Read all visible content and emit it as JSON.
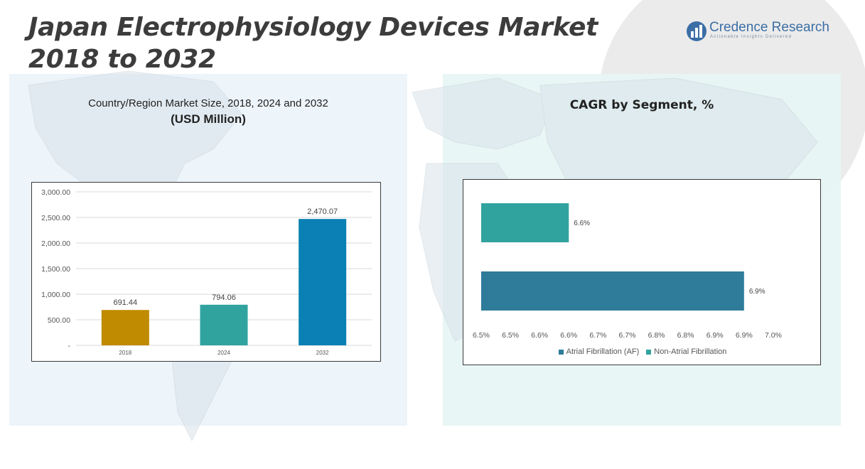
{
  "header": {
    "title_line1": "Japan Electrophysiology Devices Market",
    "title_line2": "2018 to 2032"
  },
  "logo": {
    "name": "Credence Research",
    "tagline": "Actionable Insights Delivered",
    "color": "#3b6ea5"
  },
  "left_panel": {
    "title_line1": "Country/Region Market Size, 2018, 2024 and 2032",
    "title_line2": "(USD Million)"
  },
  "right_panel": {
    "title": "CAGR by Segment, %"
  },
  "chart_data": [
    {
      "type": "bar",
      "categories": [
        "2018",
        "2024",
        "2032"
      ],
      "values": [
        691.44,
        794.06,
        2470.07
      ],
      "value_labels": [
        "691.44",
        "794.06",
        "2,470.07"
      ],
      "colors": [
        "#c08b00",
        "#31a39f",
        "#0a80b4"
      ],
      "ylim": [
        0,
        3000
      ],
      "yticks": [
        0,
        500,
        1000,
        1500,
        2000,
        2500,
        3000
      ],
      "ytick_labels": [
        "-",
        "500.00",
        "1,000.00",
        "1,500.00",
        "2,000.00",
        "2,500.00",
        "3,000.00"
      ],
      "grid": true
    },
    {
      "type": "bar",
      "orientation": "horizontal",
      "series": [
        {
          "name": "Atrial Fibrillation (AF)",
          "value": 6.9,
          "label": "6.9%",
          "color": "#2e7b9a"
        },
        {
          "name": "Non-Atrial Fibrillation",
          "value": 6.6,
          "label": "6.6%",
          "color": "#31a39f"
        }
      ],
      "xlim": [
        6.45,
        7.0
      ],
      "xticks": [
        6.45,
        6.5,
        6.55,
        6.6,
        6.65,
        6.7,
        6.75,
        6.8,
        6.85,
        6.9,
        6.95
      ],
      "xtick_labels": [
        "6.5%",
        "6.5%",
        "6.6%",
        "6.6%",
        "6.7%",
        "6.7%",
        "6.8%",
        "6.8%",
        "6.9%",
        "6.9%",
        "7.0%"
      ],
      "legend_position": "bottom",
      "grid": false
    }
  ]
}
